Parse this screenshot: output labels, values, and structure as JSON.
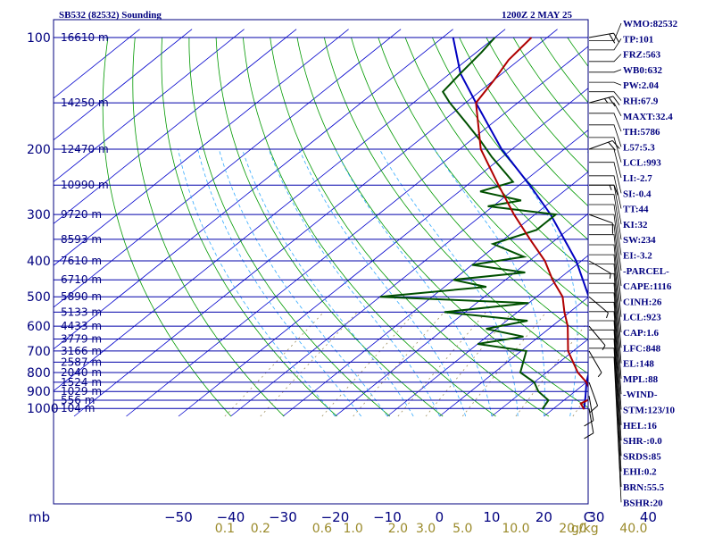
{
  "header": {
    "station": "SB532 (82532) Sounding",
    "time": "1200Z  2 MAY 25"
  },
  "units": {
    "pressure": "mb",
    "mixing_ratio": "g/kg"
  },
  "colors": {
    "frame": "#00007f",
    "isobar": "#0000aa",
    "isotherm": "#0000cc",
    "dry_adiabat": "#009900",
    "moist_adiabat": "#33aaff",
    "mixing_ratio": "#a09060",
    "temperature": "#b00000",
    "dewpoint": "#005000",
    "parcel": "#0000c0",
    "wind_barb": "#000000"
  },
  "chart_data": {
    "type": "skew-t",
    "pressure_levels": [
      100,
      200,
      300,
      400,
      500,
      600,
      700,
      800,
      900,
      1000
    ],
    "pressure_range": [
      100,
      1050
    ],
    "temperature_range": [
      -50,
      50
    ],
    "temperature_ticks": [
      "−50",
      "−40",
      "−30",
      "−20",
      "−10",
      "0",
      "10",
      "20",
      "30",
      "40",
      "C"
    ],
    "mixing_ratio_ticks": [
      "0.1",
      "0.2",
      "0.6",
      "1.0",
      "2.0",
      "3.0",
      "5.0",
      "10.0",
      "20.0",
      "40.0"
    ],
    "height_labels": [
      {
        "p": 100,
        "label": "16610 m"
      },
      {
        "p": 150,
        "label": "14250 m"
      },
      {
        "p": 200,
        "label": "12470 m"
      },
      {
        "p": 250,
        "label": "10990 m"
      },
      {
        "p": 300,
        "label": "9720 m"
      },
      {
        "p": 350,
        "label": "8593 m"
      },
      {
        "p": 400,
        "label": "7610 m"
      },
      {
        "p": 450,
        "label": "6710 m"
      },
      {
        "p": 500,
        "label": "5890 m"
      },
      {
        "p": 550,
        "label": "5133 m"
      },
      {
        "p": 600,
        "label": "4433 m"
      },
      {
        "p": 650,
        "label": "3779 m"
      },
      {
        "p": 700,
        "label": "3166 m"
      },
      {
        "p": 750,
        "label": "2587 m"
      },
      {
        "p": 800,
        "label": "2040 m"
      },
      {
        "p": 850,
        "label": "1524 m"
      },
      {
        "p": 900,
        "label": "1029 m"
      },
      {
        "p": 950,
        "label": "556 m"
      },
      {
        "p": 1000,
        "label": "104 m"
      }
    ],
    "temperature_profile": [
      {
        "p": 1005,
        "t": 26
      },
      {
        "p": 970,
        "t": 24
      },
      {
        "p": 930,
        "t": 25
      },
      {
        "p": 900,
        "t": 23
      },
      {
        "p": 850,
        "t": 20
      },
      {
        "p": 800,
        "t": 16
      },
      {
        "p": 700,
        "t": 9
      },
      {
        "p": 600,
        "t": 3
      },
      {
        "p": 550,
        "t": -1
      },
      {
        "p": 500,
        "t": -5
      },
      {
        "p": 450,
        "t": -11
      },
      {
        "p": 400,
        "t": -17
      },
      {
        "p": 350,
        "t": -25
      },
      {
        "p": 300,
        "t": -34
      },
      {
        "p": 250,
        "t": -44
      },
      {
        "p": 200,
        "t": -56
      },
      {
        "p": 150,
        "t": -68
      },
      {
        "p": 130,
        "t": -70
      },
      {
        "p": 115,
        "t": -72
      },
      {
        "p": 100,
        "t": -73
      }
    ],
    "dewpoint_profile": [
      {
        "p": 1005,
        "t": 18
      },
      {
        "p": 950,
        "t": 17
      },
      {
        "p": 900,
        "t": 13
      },
      {
        "p": 850,
        "t": 10
      },
      {
        "p": 800,
        "t": 5
      },
      {
        "p": 700,
        "t": 1
      },
      {
        "p": 670,
        "t": -10
      },
      {
        "p": 640,
        "t": -3
      },
      {
        "p": 610,
        "t": -12
      },
      {
        "p": 580,
        "t": -6
      },
      {
        "p": 550,
        "t": -24
      },
      {
        "p": 520,
        "t": -10
      },
      {
        "p": 500,
        "t": -40
      },
      {
        "p": 470,
        "t": -22
      },
      {
        "p": 450,
        "t": -30
      },
      {
        "p": 430,
        "t": -18
      },
      {
        "p": 410,
        "t": -30
      },
      {
        "p": 390,
        "t": -22
      },
      {
        "p": 360,
        "t": -31
      },
      {
        "p": 330,
        "t": -26
      },
      {
        "p": 300,
        "t": -26
      },
      {
        "p": 285,
        "t": -41
      },
      {
        "p": 275,
        "t": -36
      },
      {
        "p": 260,
        "t": -46
      },
      {
        "p": 245,
        "t": -42
      },
      {
        "p": 210,
        "t": -52
      },
      {
        "p": 190,
        "t": -58
      },
      {
        "p": 170,
        "t": -65
      },
      {
        "p": 150,
        "t": -73
      },
      {
        "p": 140,
        "t": -77
      },
      {
        "p": 125,
        "t": -78
      },
      {
        "p": 110,
        "t": -79
      },
      {
        "p": 100,
        "t": -80
      }
    ],
    "parcel_profile": [
      {
        "p": 1005,
        "t": 26
      },
      {
        "p": 923,
        "t": 23
      },
      {
        "p": 850,
        "t": 20
      },
      {
        "p": 700,
        "t": 14
      },
      {
        "p": 600,
        "t": 8
      },
      {
        "p": 500,
        "t": 0
      },
      {
        "p": 400,
        "t": -11
      },
      {
        "p": 300,
        "t": -27
      },
      {
        "p": 250,
        "t": -38
      },
      {
        "p": 200,
        "t": -52
      },
      {
        "p": 150,
        "t": -68
      },
      {
        "p": 125,
        "t": -78
      },
      {
        "p": 100,
        "t": -88
      }
    ],
    "wind_barbs": [
      {
        "p": 100,
        "dir": 80,
        "speed": 20
      },
      {
        "p": 150,
        "dir": 75,
        "speed": 25
      },
      {
        "p": 200,
        "dir": 70,
        "speed": 20
      },
      {
        "p": 250,
        "dir": 90,
        "speed": 15
      },
      {
        "p": 300,
        "dir": 110,
        "speed": 10
      },
      {
        "p": 400,
        "dir": 120,
        "speed": 5
      },
      {
        "p": 500,
        "dir": 130,
        "speed": 5
      },
      {
        "p": 600,
        "dir": 140,
        "speed": 5
      },
      {
        "p": 700,
        "dir": 150,
        "speed": 5
      },
      {
        "p": 850,
        "dir": 160,
        "speed": 10
      },
      {
        "p": 925,
        "dir": 170,
        "speed": 10
      },
      {
        "p": 1000,
        "dir": 170,
        "speed": 10
      }
    ],
    "indices": [
      {
        "label": "WMO:82532",
        "p": 102
      },
      {
        "label": "TP:101",
        "p": 108
      },
      {
        "label": "FRZ:563",
        "p": 116
      },
      {
        "label": "WB0:632",
        "p": 124
      },
      {
        "label": "PW:2.04",
        "p": 132
      },
      {
        "label": "RH:67.9",
        "p": 140
      },
      {
        "label": "MAXT:32.4",
        "p": 150
      },
      {
        "label": "TH:5786",
        "p": 160
      },
      {
        "label": "L57:5.3",
        "p": 172
      },
      {
        "label": "LCL:993",
        "p": 186
      },
      {
        "label": "LI:-2.7",
        "p": 200
      },
      {
        "label": "SI:-0.4",
        "p": 217
      },
      {
        "label": "TT:44",
        "p": 236
      },
      {
        "label": "KI:32",
        "p": 250
      },
      {
        "label": "SW:234",
        "p": 265
      },
      {
        "label": "EI:-3.2",
        "p": 282
      },
      {
        "label": "-PARCEL-",
        "p": 300
      },
      {
        "label": "CAPE:1116",
        "p": 320
      },
      {
        "label": "CINH:26",
        "p": 340
      },
      {
        "label": "LCL:923",
        "p": 362
      },
      {
        "label": "CAP:1.6",
        "p": 385
      },
      {
        "label": "LFC:848",
        "p": 408
      },
      {
        "label": "EL:148",
        "p": 433
      },
      {
        "label": "MPL:88",
        "p": 460
      },
      {
        "label": "-WIND-",
        "p": 488
      },
      {
        "label": "STM:123/10",
        "p": 517
      },
      {
        "label": "HEL:16",
        "p": 548
      },
      {
        "label": "SHR-:0.0",
        "p": 580
      },
      {
        "label": "SRDS:85",
        "p": 614
      },
      {
        "label": "EHI:0.2",
        "p": 650
      },
      {
        "label": "BRN:55.5",
        "p": 688
      },
      {
        "label": "BSHR:20",
        "p": 728
      }
    ]
  }
}
